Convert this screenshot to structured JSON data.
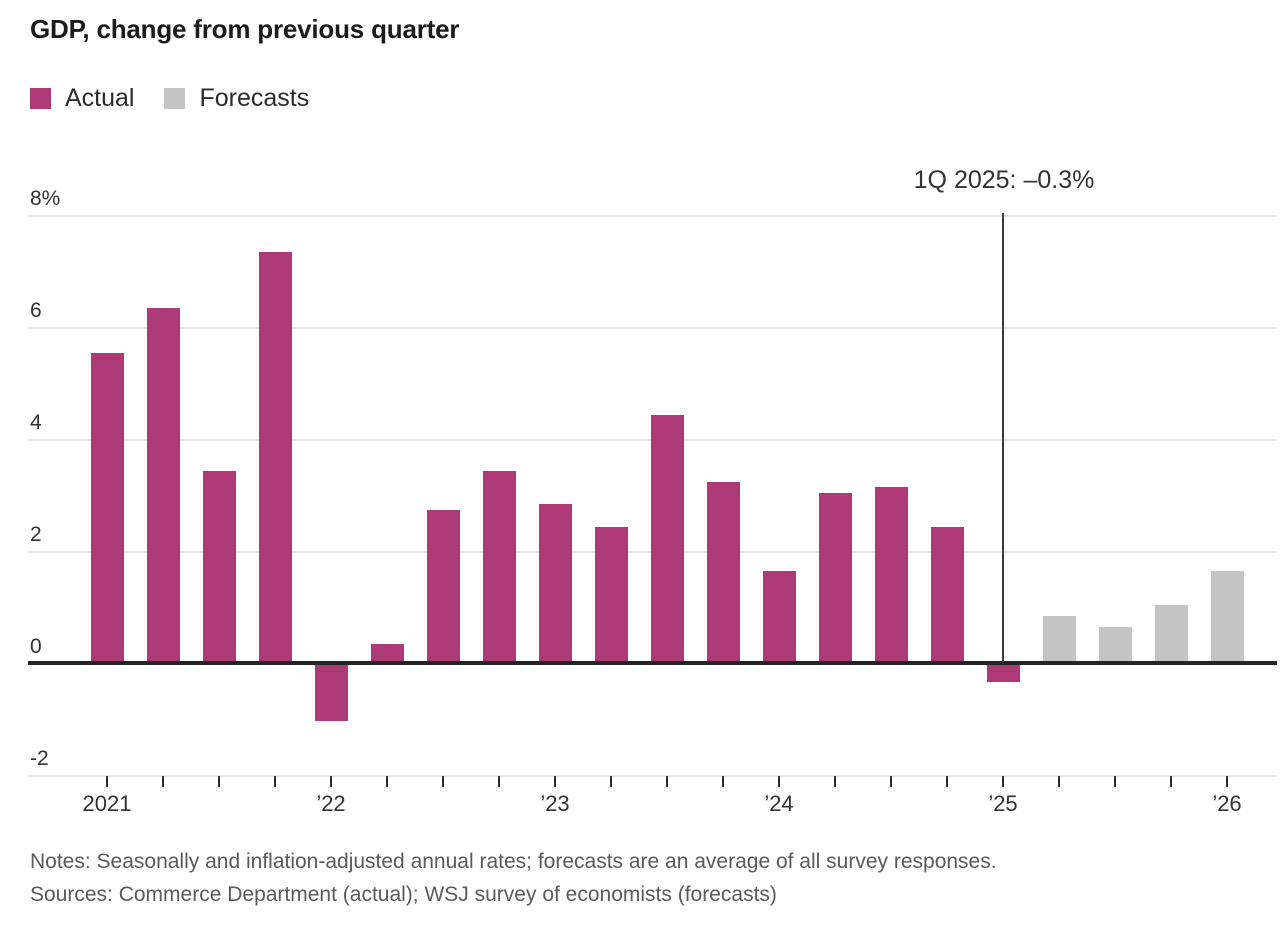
{
  "header": {
    "title": "GDP, change from previous quarter"
  },
  "legend": [
    {
      "label": "Actual",
      "color": "#ad3a77"
    },
    {
      "label": "Forecasts",
      "color": "#c4c4c4"
    }
  ],
  "chart_data": {
    "type": "bar",
    "title": "GDP, change from previous quarter",
    "ylim": [
      -2,
      8
    ],
    "grid": true,
    "legend_position": "top-left",
    "y_axis": {
      "ticks": [
        {
          "label": "8%",
          "value": 8
        },
        {
          "label": "6",
          "value": 6
        },
        {
          "label": "4",
          "value": 4
        },
        {
          "label": "2",
          "value": 2
        },
        {
          "label": "0",
          "value": 0
        },
        {
          "label": "-2",
          "value": -2
        }
      ]
    },
    "x_axis": {
      "year_labels": [
        {
          "label": "2021",
          "quarter_index": 0
        },
        {
          "label": "’22",
          "quarter_index": 4
        },
        {
          "label": "’23",
          "quarter_index": 8
        },
        {
          "label": "’24",
          "quarter_index": 12
        },
        {
          "label": "’25",
          "quarter_index": 16
        },
        {
          "label": "’26",
          "quarter_index": 20
        }
      ]
    },
    "series": [
      {
        "name": "Actual",
        "color": "#ad3a77"
      },
      {
        "name": "Forecasts",
        "color": "#c4c4c4"
      }
    ],
    "points": [
      {
        "quarter": "1Q 2021",
        "value": 5.5,
        "kind": "actual"
      },
      {
        "quarter": "2Q 2021",
        "value": 6.3,
        "kind": "actual"
      },
      {
        "quarter": "3Q 2021",
        "value": 3.4,
        "kind": "actual"
      },
      {
        "quarter": "4Q 2021",
        "value": 7.3,
        "kind": "actual"
      },
      {
        "quarter": "1Q 2022",
        "value": -1.0,
        "kind": "actual"
      },
      {
        "quarter": "2Q 2022",
        "value": 0.3,
        "kind": "actual"
      },
      {
        "quarter": "3Q 2022",
        "value": 2.7,
        "kind": "actual"
      },
      {
        "quarter": "4Q 2022",
        "value": 3.4,
        "kind": "actual"
      },
      {
        "quarter": "1Q 2023",
        "value": 2.8,
        "kind": "actual"
      },
      {
        "quarter": "2Q 2023",
        "value": 2.4,
        "kind": "actual"
      },
      {
        "quarter": "3Q 2023",
        "value": 4.4,
        "kind": "actual"
      },
      {
        "quarter": "4Q 2023",
        "value": 3.2,
        "kind": "actual"
      },
      {
        "quarter": "1Q 2024",
        "value": 1.6,
        "kind": "actual"
      },
      {
        "quarter": "2Q 2024",
        "value": 3.0,
        "kind": "actual"
      },
      {
        "quarter": "3Q 2024",
        "value": 3.1,
        "kind": "actual"
      },
      {
        "quarter": "4Q 2024",
        "value": 2.4,
        "kind": "actual"
      },
      {
        "quarter": "1Q 2025",
        "value": -0.3,
        "kind": "actual"
      },
      {
        "quarter": "2Q 2025",
        "value": 0.8,
        "kind": "forecast"
      },
      {
        "quarter": "3Q 2025",
        "value": 0.6,
        "kind": "forecast"
      },
      {
        "quarter": "4Q 2025",
        "value": 1.0,
        "kind": "forecast"
      },
      {
        "quarter": "1Q 2026",
        "value": 1.6,
        "kind": "forecast"
      }
    ],
    "annotation": {
      "text": "1Q 2025: –0.3%",
      "quarter_index": 16
    }
  },
  "notes": {
    "line1": "Notes: Seasonally and inflation-adjusted annual rates; forecasts are an average of all survey responses.",
    "line2": "Sources: Commerce Department (actual); WSJ survey of economists (forecasts)"
  }
}
